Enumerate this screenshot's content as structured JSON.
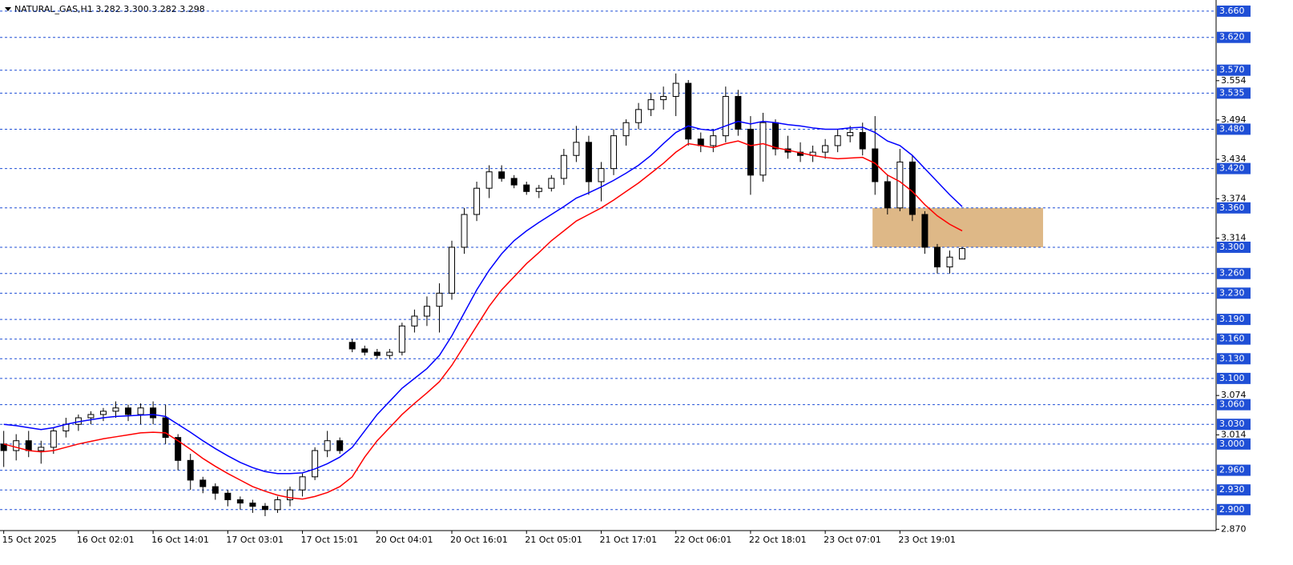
{
  "chart_data": {
    "type": "candlestick",
    "title": "NATURAL_GAS,H1  3.282 3.300 3.282 3.298",
    "up_color": "#ffffff",
    "down_color": "#000000",
    "level_color": "#1f4fd6",
    "ylim": [
      2.868,
      3.677
    ],
    "yticks": [
      {
        "value": 2.87,
        "label": "2.870"
      },
      3.014,
      3.074,
      3.314,
      3.374,
      3.434,
      3.494,
      3.554
    ],
    "levels": [
      {
        "value": 3.66,
        "label": "3.660"
      },
      {
        "value": 3.62,
        "label": "3.620"
      },
      {
        "value": 3.57,
        "label": "3.570"
      },
      3.535,
      {
        "value": 3.48,
        "label": "3.480"
      },
      {
        "value": 3.42,
        "label": "3.420"
      },
      {
        "value": 3.36,
        "label": "3.360"
      },
      {
        "value": 3.3,
        "label": "3.300"
      },
      {
        "value": 3.26,
        "label": "3.260"
      },
      {
        "value": 3.23,
        "label": "3.230"
      },
      {
        "value": 3.19,
        "label": "3.190"
      },
      {
        "value": 3.16,
        "label": "3.160"
      },
      {
        "value": 3.13,
        "label": "3.130"
      },
      {
        "value": 3.1,
        "label": "3.100"
      },
      {
        "value": 3.06,
        "label": "3.060"
      },
      {
        "value": 3.03,
        "label": "3.030"
      },
      {
        "value": 3.0,
        "label": "3.000"
      },
      {
        "value": 2.96,
        "label": "2.960"
      },
      {
        "value": 2.93,
        "label": "2.930"
      },
      {
        "value": 2.9,
        "label": "2.900"
      }
    ],
    "xlim": [
      -0.3,
      97.4
    ],
    "xticks": [
      {
        "value": 0,
        "label": "15 Oct 2025"
      },
      {
        "value": 6,
        "label": "16 Oct 02:01"
      },
      {
        "value": 12,
        "label": "16 Oct 14:01"
      },
      {
        "value": 18,
        "label": "17 Oct 03:01"
      },
      {
        "value": 24,
        "label": "17 Oct 15:01"
      },
      {
        "value": 30,
        "label": "20 Oct 04:01"
      },
      {
        "value": 36,
        "label": "20 Oct 16:01"
      },
      {
        "value": 42,
        "label": "21 Oct 05:01"
      },
      {
        "value": 48,
        "label": "21 Oct 17:01"
      },
      {
        "value": 54,
        "label": "22 Oct 06:01"
      },
      {
        "value": 60,
        "label": "22 Oct 18:01"
      },
      {
        "value": 66,
        "label": "23 Oct 07:01"
      },
      {
        "value": 72,
        "label": "23 Oct 19:01"
      }
    ],
    "open": [
      3.0,
      2.99,
      3.005,
      2.99,
      2.995,
      3.02,
      3.03,
      3.04,
      3.045,
      3.05,
      3.055,
      3.045,
      3.055,
      3.04,
      3.01,
      2.975,
      2.945,
      2.935,
      2.925,
      2.915,
      2.91,
      2.905,
      2.9,
      2.915,
      2.93,
      2.95,
      2.99,
      3.005,
      3.155,
      3.145,
      3.14,
      3.135,
      3.14,
      3.18,
      3.195,
      3.21,
      3.23,
      3.3,
      3.35,
      3.39,
      3.415,
      3.405,
      3.395,
      3.385,
      3.39,
      3.405,
      3.44,
      3.46,
      3.4,
      3.42,
      3.47,
      3.49,
      3.51,
      3.525,
      3.53,
      3.55,
      3.465,
      3.455,
      3.47,
      3.53,
      3.48,
      3.41,
      3.49,
      3.45,
      3.445,
      3.44,
      3.445,
      3.455,
      3.47,
      3.475,
      3.45,
      3.4,
      3.36,
      3.43,
      3.35,
      3.3,
      3.27,
      3.282
    ],
    "high": [
      3.02,
      3.015,
      3.02,
      3.005,
      3.025,
      3.04,
      3.045,
      3.05,
      3.055,
      3.065,
      3.06,
      3.062,
      3.065,
      3.06,
      3.015,
      2.985,
      2.95,
      2.94,
      2.93,
      2.92,
      2.915,
      2.91,
      2.92,
      2.935,
      2.955,
      2.995,
      3.02,
      3.01,
      3.16,
      3.15,
      3.145,
      3.145,
      3.185,
      3.205,
      3.225,
      3.245,
      3.31,
      3.36,
      3.4,
      3.425,
      3.425,
      3.41,
      3.4,
      3.395,
      3.41,
      3.45,
      3.485,
      3.47,
      3.43,
      3.48,
      3.495,
      3.52,
      3.535,
      3.545,
      3.565,
      3.555,
      3.475,
      3.48,
      3.545,
      3.54,
      3.5,
      3.505,
      3.495,
      3.47,
      3.46,
      3.455,
      3.465,
      3.48,
      3.485,
      3.49,
      3.5,
      3.41,
      3.45,
      3.44,
      3.355,
      3.305,
      3.295,
      3.3
    ],
    "low": [
      2.965,
      2.975,
      2.98,
      2.97,
      2.985,
      3.01,
      3.02,
      3.03,
      3.035,
      3.04,
      3.035,
      3.03,
      3.03,
      3.0,
      2.96,
      2.93,
      2.925,
      2.915,
      2.905,
      2.9,
      2.895,
      2.89,
      2.895,
      2.905,
      2.92,
      2.945,
      2.98,
      2.985,
      3.14,
      3.135,
      3.13,
      3.13,
      3.135,
      3.17,
      3.18,
      3.17,
      3.22,
      3.29,
      3.34,
      3.375,
      3.4,
      3.39,
      3.38,
      3.375,
      3.385,
      3.395,
      3.43,
      3.38,
      3.37,
      3.41,
      3.455,
      3.48,
      3.5,
      3.51,
      3.5,
      3.455,
      3.445,
      3.445,
      3.46,
      3.47,
      3.38,
      3.4,
      3.44,
      3.435,
      3.43,
      3.43,
      3.435,
      3.445,
      3.46,
      3.44,
      3.38,
      3.35,
      3.355,
      3.34,
      3.29,
      3.26,
      3.26,
      3.282
    ],
    "close": [
      2.99,
      3.005,
      2.99,
      2.995,
      3.02,
      3.03,
      3.04,
      3.045,
      3.05,
      3.055,
      3.045,
      3.055,
      3.04,
      3.01,
      2.975,
      2.945,
      2.935,
      2.925,
      2.915,
      2.91,
      2.905,
      2.9,
      2.915,
      2.93,
      2.95,
      2.99,
      3.005,
      2.99,
      3.145,
      3.14,
      3.135,
      3.14,
      3.18,
      3.195,
      3.21,
      3.23,
      3.3,
      3.35,
      3.39,
      3.415,
      3.405,
      3.395,
      3.385,
      3.39,
      3.405,
      3.44,
      3.46,
      3.4,
      3.42,
      3.47,
      3.49,
      3.51,
      3.525,
      3.53,
      3.55,
      3.465,
      3.455,
      3.47,
      3.53,
      3.48,
      3.41,
      3.49,
      3.45,
      3.445,
      3.44,
      3.445,
      3.455,
      3.47,
      3.475,
      3.45,
      3.4,
      3.36,
      3.43,
      3.35,
      3.3,
      3.27,
      3.285,
      3.298
    ],
    "series": [
      {
        "color": "#0000ff",
        "values": [
          3.03,
          3.028,
          3.025,
          3.022,
          3.025,
          3.03,
          3.034,
          3.037,
          3.04,
          3.042,
          3.043,
          3.044,
          3.045,
          3.042,
          3.03,
          3.018,
          3.005,
          2.993,
          2.982,
          2.972,
          2.964,
          2.958,
          2.955,
          2.955,
          2.956,
          2.962,
          2.97,
          2.98,
          2.995,
          3.02,
          3.045,
          3.065,
          3.085,
          3.1,
          3.115,
          3.135,
          3.165,
          3.2,
          3.235,
          3.265,
          3.29,
          3.31,
          3.325,
          3.338,
          3.35,
          3.362,
          3.375,
          3.383,
          3.392,
          3.402,
          3.413,
          3.425,
          3.44,
          3.458,
          3.475,
          3.485,
          3.48,
          3.478,
          3.485,
          3.492,
          3.488,
          3.492,
          3.49,
          3.487,
          3.485,
          3.482,
          3.48,
          3.48,
          3.482,
          3.483,
          3.475,
          3.462,
          3.455,
          3.44,
          3.42,
          3.4,
          3.38,
          3.362
        ]
      },
      {
        "color": "#ff0000",
        "values": [
          3.0,
          2.995,
          2.99,
          2.988,
          2.99,
          2.995,
          3.0,
          3.004,
          3.008,
          3.011,
          3.014,
          3.017,
          3.018,
          3.017,
          3.005,
          2.992,
          2.978,
          2.966,
          2.955,
          2.945,
          2.935,
          2.928,
          2.922,
          2.918,
          2.916,
          2.92,
          2.926,
          2.935,
          2.95,
          2.98,
          3.005,
          3.025,
          3.045,
          3.062,
          3.078,
          3.095,
          3.12,
          3.15,
          3.18,
          3.21,
          3.235,
          3.255,
          3.275,
          3.292,
          3.31,
          3.325,
          3.34,
          3.35,
          3.36,
          3.372,
          3.385,
          3.398,
          3.413,
          3.428,
          3.445,
          3.458,
          3.455,
          3.452,
          3.458,
          3.462,
          3.455,
          3.458,
          3.452,
          3.448,
          3.444,
          3.44,
          3.437,
          3.435,
          3.436,
          3.437,
          3.428,
          3.41,
          3.4,
          3.385,
          3.365,
          3.348,
          3.335,
          3.325
        ]
      }
    ],
    "zone": {
      "ylim": [
        3.3,
        3.36
      ],
      "xlim": [
        69.8,
        83.5
      ],
      "color": "#deb887"
    }
  }
}
